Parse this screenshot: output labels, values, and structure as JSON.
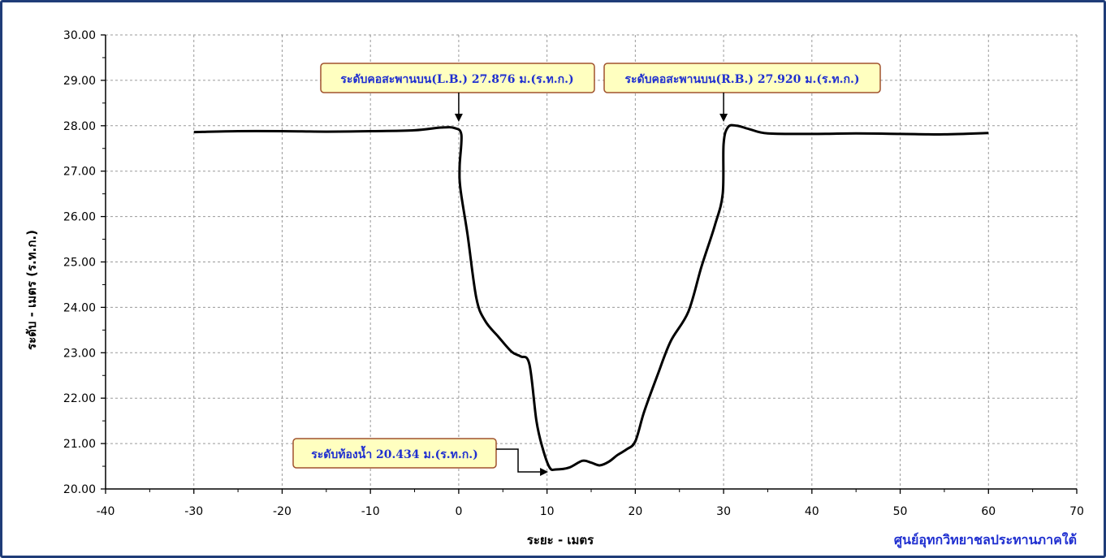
{
  "colors": {
    "frame": "#1f3c78",
    "line": "#000000",
    "grid": "#9a9a9a",
    "callout_fill": "#ffffc0",
    "callout_border": "#a0522d",
    "callout_text": "#1f2fd0"
  },
  "chart_data": {
    "type": "line",
    "xlabel": "ระยะ - เมตร",
    "ylabel": "ระดับ - เมตร (ร.ท.ก.)",
    "xlim": [
      -40,
      70
    ],
    "ylim": [
      20,
      30
    ],
    "x_ticks": [
      "-40",
      "-30",
      "-20",
      "-10",
      "0",
      "10",
      "20",
      "30",
      "40",
      "50",
      "60",
      "70"
    ],
    "y_ticks": [
      "20.00",
      "21.00",
      "22.00",
      "23.00",
      "24.00",
      "25.00",
      "26.00",
      "27.00",
      "28.00",
      "29.00",
      "30.00"
    ],
    "grid": true,
    "series": [
      {
        "points": [
          [
            -30,
            27.86
          ],
          [
            -25,
            27.88
          ],
          [
            -20,
            27.88
          ],
          [
            -15,
            27.87
          ],
          [
            -10,
            27.88
          ],
          [
            -5,
            27.9
          ],
          [
            -2,
            27.96
          ],
          [
            -0.5,
            27.95
          ],
          [
            0.3,
            27.8
          ],
          [
            0.1,
            27.1
          ],
          [
            0.2,
            26.6
          ],
          [
            1,
            25.6
          ],
          [
            2,
            24.2
          ],
          [
            3,
            23.7
          ],
          [
            4.5,
            23.35
          ],
          [
            6,
            23.02
          ],
          [
            7,
            22.92
          ],
          [
            8,
            22.75
          ],
          [
            8.8,
            21.5
          ],
          [
            9.5,
            20.9
          ],
          [
            10.3,
            20.47
          ],
          [
            11,
            20.43
          ],
          [
            12.5,
            20.47
          ],
          [
            14,
            20.62
          ],
          [
            15,
            20.58
          ],
          [
            16,
            20.52
          ],
          [
            17,
            20.6
          ],
          [
            18,
            20.75
          ],
          [
            19,
            20.87
          ],
          [
            20,
            21.05
          ],
          [
            21,
            21.7
          ],
          [
            22.5,
            22.5
          ],
          [
            24,
            23.25
          ],
          [
            26,
            23.9
          ],
          [
            27.5,
            24.9
          ],
          [
            29,
            25.8
          ],
          [
            29.9,
            26.5
          ],
          [
            30,
            27.6
          ],
          [
            30.5,
            27.97
          ],
          [
            31.5,
            28.0
          ],
          [
            33,
            27.92
          ],
          [
            35,
            27.83
          ],
          [
            40,
            27.82
          ],
          [
            45,
            27.83
          ],
          [
            50,
            27.82
          ],
          [
            55,
            27.81
          ],
          [
            60,
            27.84
          ]
        ]
      }
    ],
    "annotations": [
      {
        "text": "ระดับคอสะพานบน(L.B.) 27.876 ม.(ร.ท.ก.)",
        "x": 0,
        "y": 27.876
      },
      {
        "text": "ระดับคอสะพานบน(R.B.) 27.920 ม.(ร.ท.ก.)",
        "x": 30,
        "y": 27.92
      },
      {
        "text": "ระดับท้องน้ำ 20.434 ม.(ร.ท.ก.)",
        "x": 10.5,
        "y": 20.434
      }
    ]
  },
  "footer": {
    "credit": "ศูนย์อุทกวิทยาชลประทานภาคใต้"
  }
}
